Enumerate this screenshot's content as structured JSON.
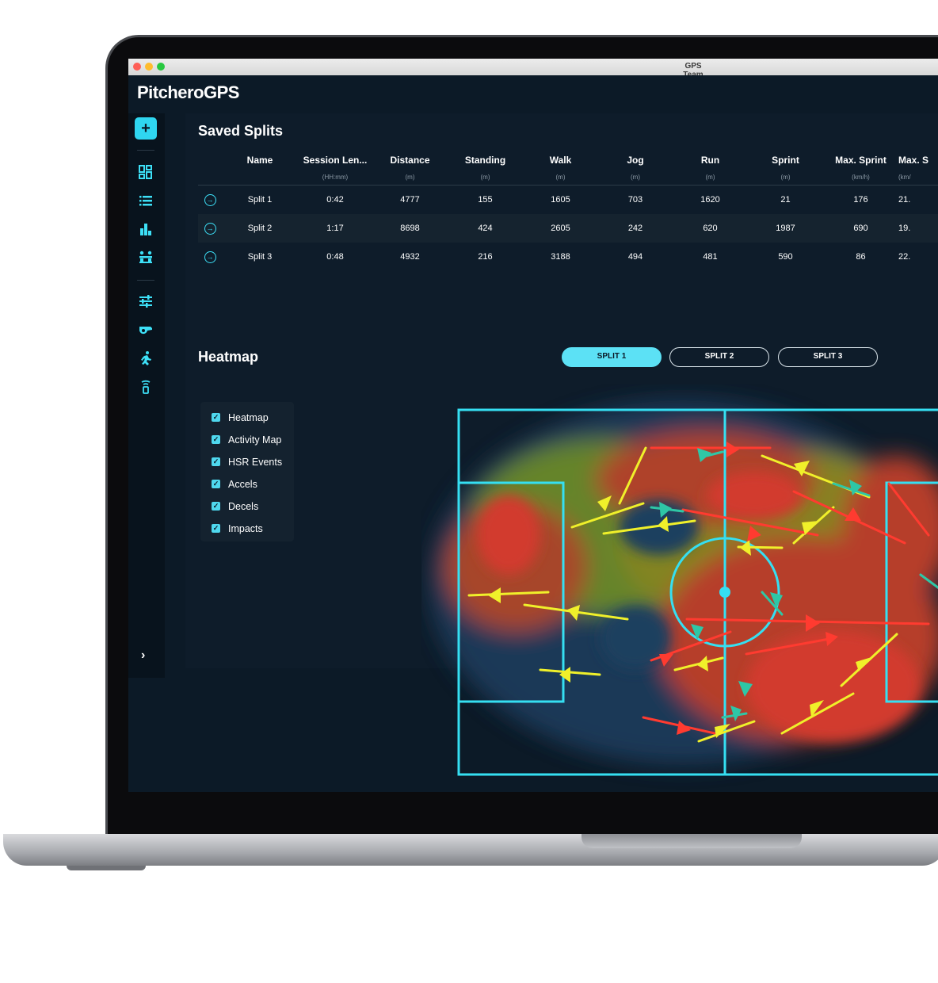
{
  "window": {
    "title": "GPS Team"
  },
  "app": {
    "logo": "PitcheroGPS"
  },
  "sidebar": {
    "add_label": "+",
    "icons": [
      "dashboard-icon",
      "list-icon",
      "bar-chart-icon",
      "squad-icon",
      "sliders-icon",
      "whistle-icon",
      "runner-icon",
      "gps-device-icon"
    ],
    "expand_label": "›"
  },
  "splits": {
    "title": "Saved Splits",
    "columns": [
      {
        "label": "Name",
        "unit": ""
      },
      {
        "label": "Session Len...",
        "unit": "(HH:mm)"
      },
      {
        "label": "Distance",
        "unit": "(m)"
      },
      {
        "label": "Standing",
        "unit": "(m)"
      },
      {
        "label": "Walk",
        "unit": "(m)"
      },
      {
        "label": "Jog",
        "unit": "(m)"
      },
      {
        "label": "Run",
        "unit": "(m)"
      },
      {
        "label": "Sprint",
        "unit": "(m)"
      },
      {
        "label": "Max. Sprint",
        "unit": "(km/h)"
      },
      {
        "label": "Max. S",
        "unit": "(km/"
      }
    ],
    "rows": [
      [
        "Split 1",
        "0:42",
        "4777",
        "155",
        "1605",
        "703",
        "1620",
        "21",
        "176",
        "21."
      ],
      [
        "Split 2",
        "1:17",
        "8698",
        "424",
        "2605",
        "242",
        "620",
        "1987",
        "690",
        "19."
      ],
      [
        "Split 3",
        "0:48",
        "4932",
        "216",
        "3188",
        "494",
        "481",
        "590",
        "86",
        "22."
      ]
    ]
  },
  "heatmap": {
    "title": "Heatmap",
    "tabs": [
      "SPLIT 1",
      "SPLIT 2",
      "SPLIT 3"
    ],
    "active_tab": "SPLIT 1",
    "layers": [
      "Heatmap",
      "Activity Map",
      "HSR Events",
      "Accels",
      "Decels",
      "Impacts"
    ],
    "colors": {
      "accent": "#3de0f7",
      "hsr": "#f0f02a",
      "accel": "#ff3b30",
      "decel": "#2ec7a6"
    }
  }
}
